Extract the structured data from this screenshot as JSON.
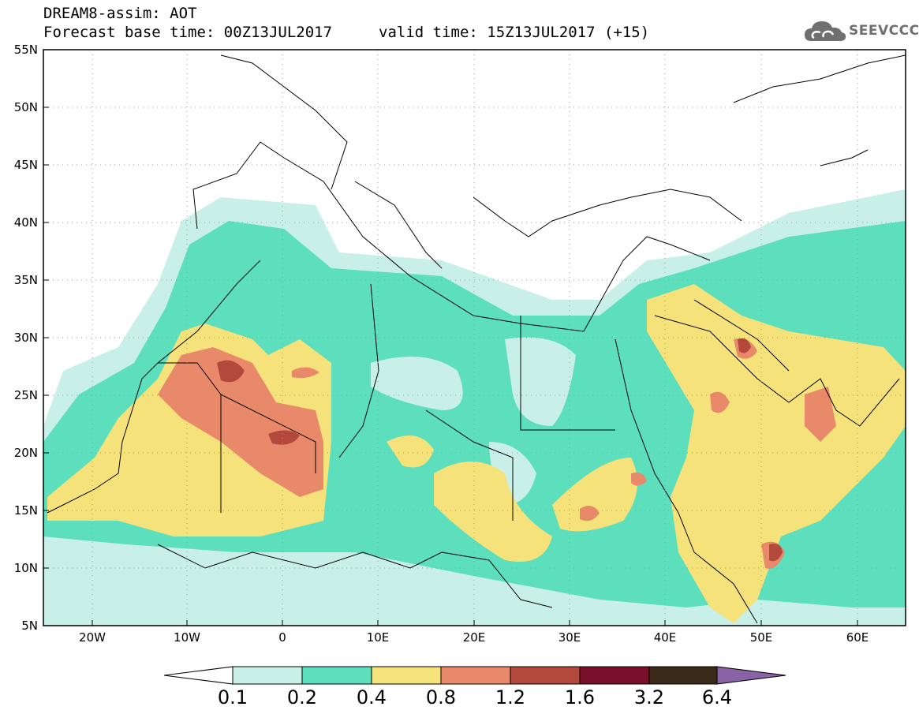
{
  "title": {
    "line1": "DREAM8-assim: AOT",
    "line2": "Forecast base time: 00Z13JUL2017",
    "valid": "valid time: 15Z13JUL2017 (+15)"
  },
  "logo": {
    "text": "SEEVCCC",
    "icon": "cloud-icon"
  },
  "map": {
    "projection": "lat-lon",
    "lon_range": [
      -25,
      65
    ],
    "lat_range": [
      5,
      55
    ],
    "lat_labels": [
      "55N",
      "50N",
      "45N",
      "40N",
      "35N",
      "30N",
      "25N",
      "20N",
      "15N",
      "10N",
      "5N"
    ],
    "lon_labels": [
      "20W",
      "10W",
      "0",
      "10E",
      "20E",
      "30E",
      "40E",
      "50E",
      "60E"
    ],
    "grid": "dotted"
  },
  "colorbar": {
    "labels": [
      "0.1",
      "0.2",
      "0.4",
      "0.8",
      "1.2",
      "1.6",
      "3.2",
      "6.4"
    ],
    "colors": [
      "#c8f0e8",
      "#5ddfbd",
      "#f6e27a",
      "#e8896a",
      "#b3483d",
      "#7a0f2a",
      "#3a2a1a",
      "#8a63a6"
    ]
  }
}
